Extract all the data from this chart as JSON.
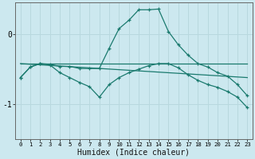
{
  "xlabel": "Humidex (Indice chaleur)",
  "bg_color": "#cce8ef",
  "line_color": "#1a7a6e",
  "grid_color": "#b8d8de",
  "x_ticks": [
    0,
    1,
    2,
    3,
    4,
    5,
    6,
    7,
    8,
    9,
    10,
    11,
    12,
    13,
    14,
    15,
    16,
    17,
    18,
    19,
    20,
    21,
    22,
    23
  ],
  "y_ticks": [
    -1,
    0
  ],
  "xlim": [
    -0.5,
    23.5
  ],
  "ylim": [
    -1.5,
    0.45
  ],
  "line1_x": [
    0,
    1,
    2,
    3,
    4,
    5,
    6,
    7,
    8,
    9,
    10,
    11,
    12,
    13,
    14,
    15,
    16,
    17,
    18,
    19,
    20,
    21,
    22,
    23
  ],
  "line1_y": [
    -0.62,
    -0.47,
    -0.42,
    -0.43,
    -0.46,
    -0.46,
    -0.49,
    -0.49,
    -0.49,
    -0.2,
    0.08,
    0.2,
    0.35,
    0.35,
    0.36,
    0.04,
    -0.15,
    -0.3,
    -0.42,
    -0.47,
    -0.55,
    -0.6,
    -0.72,
    -0.88
  ],
  "line2_x": [
    0,
    1,
    2,
    3,
    4,
    5,
    6,
    7,
    8,
    9,
    10,
    11,
    12,
    13,
    14,
    15,
    16,
    17,
    18,
    19,
    20,
    21,
    22,
    23
  ],
  "line2_y": [
    -0.62,
    -0.47,
    -0.42,
    -0.44,
    -0.55,
    -0.62,
    -0.69,
    -0.75,
    -0.9,
    -0.72,
    -0.62,
    -0.55,
    -0.5,
    -0.45,
    -0.42,
    -0.42,
    -0.48,
    -0.58,
    -0.66,
    -0.72,
    -0.76,
    -0.82,
    -0.9,
    -1.05
  ],
  "line3_x": [
    0,
    23
  ],
  "line3_y": [
    -0.42,
    -0.42
  ],
  "line4_x": [
    0,
    23
  ],
  "line4_y": [
    -0.42,
    -0.62
  ]
}
